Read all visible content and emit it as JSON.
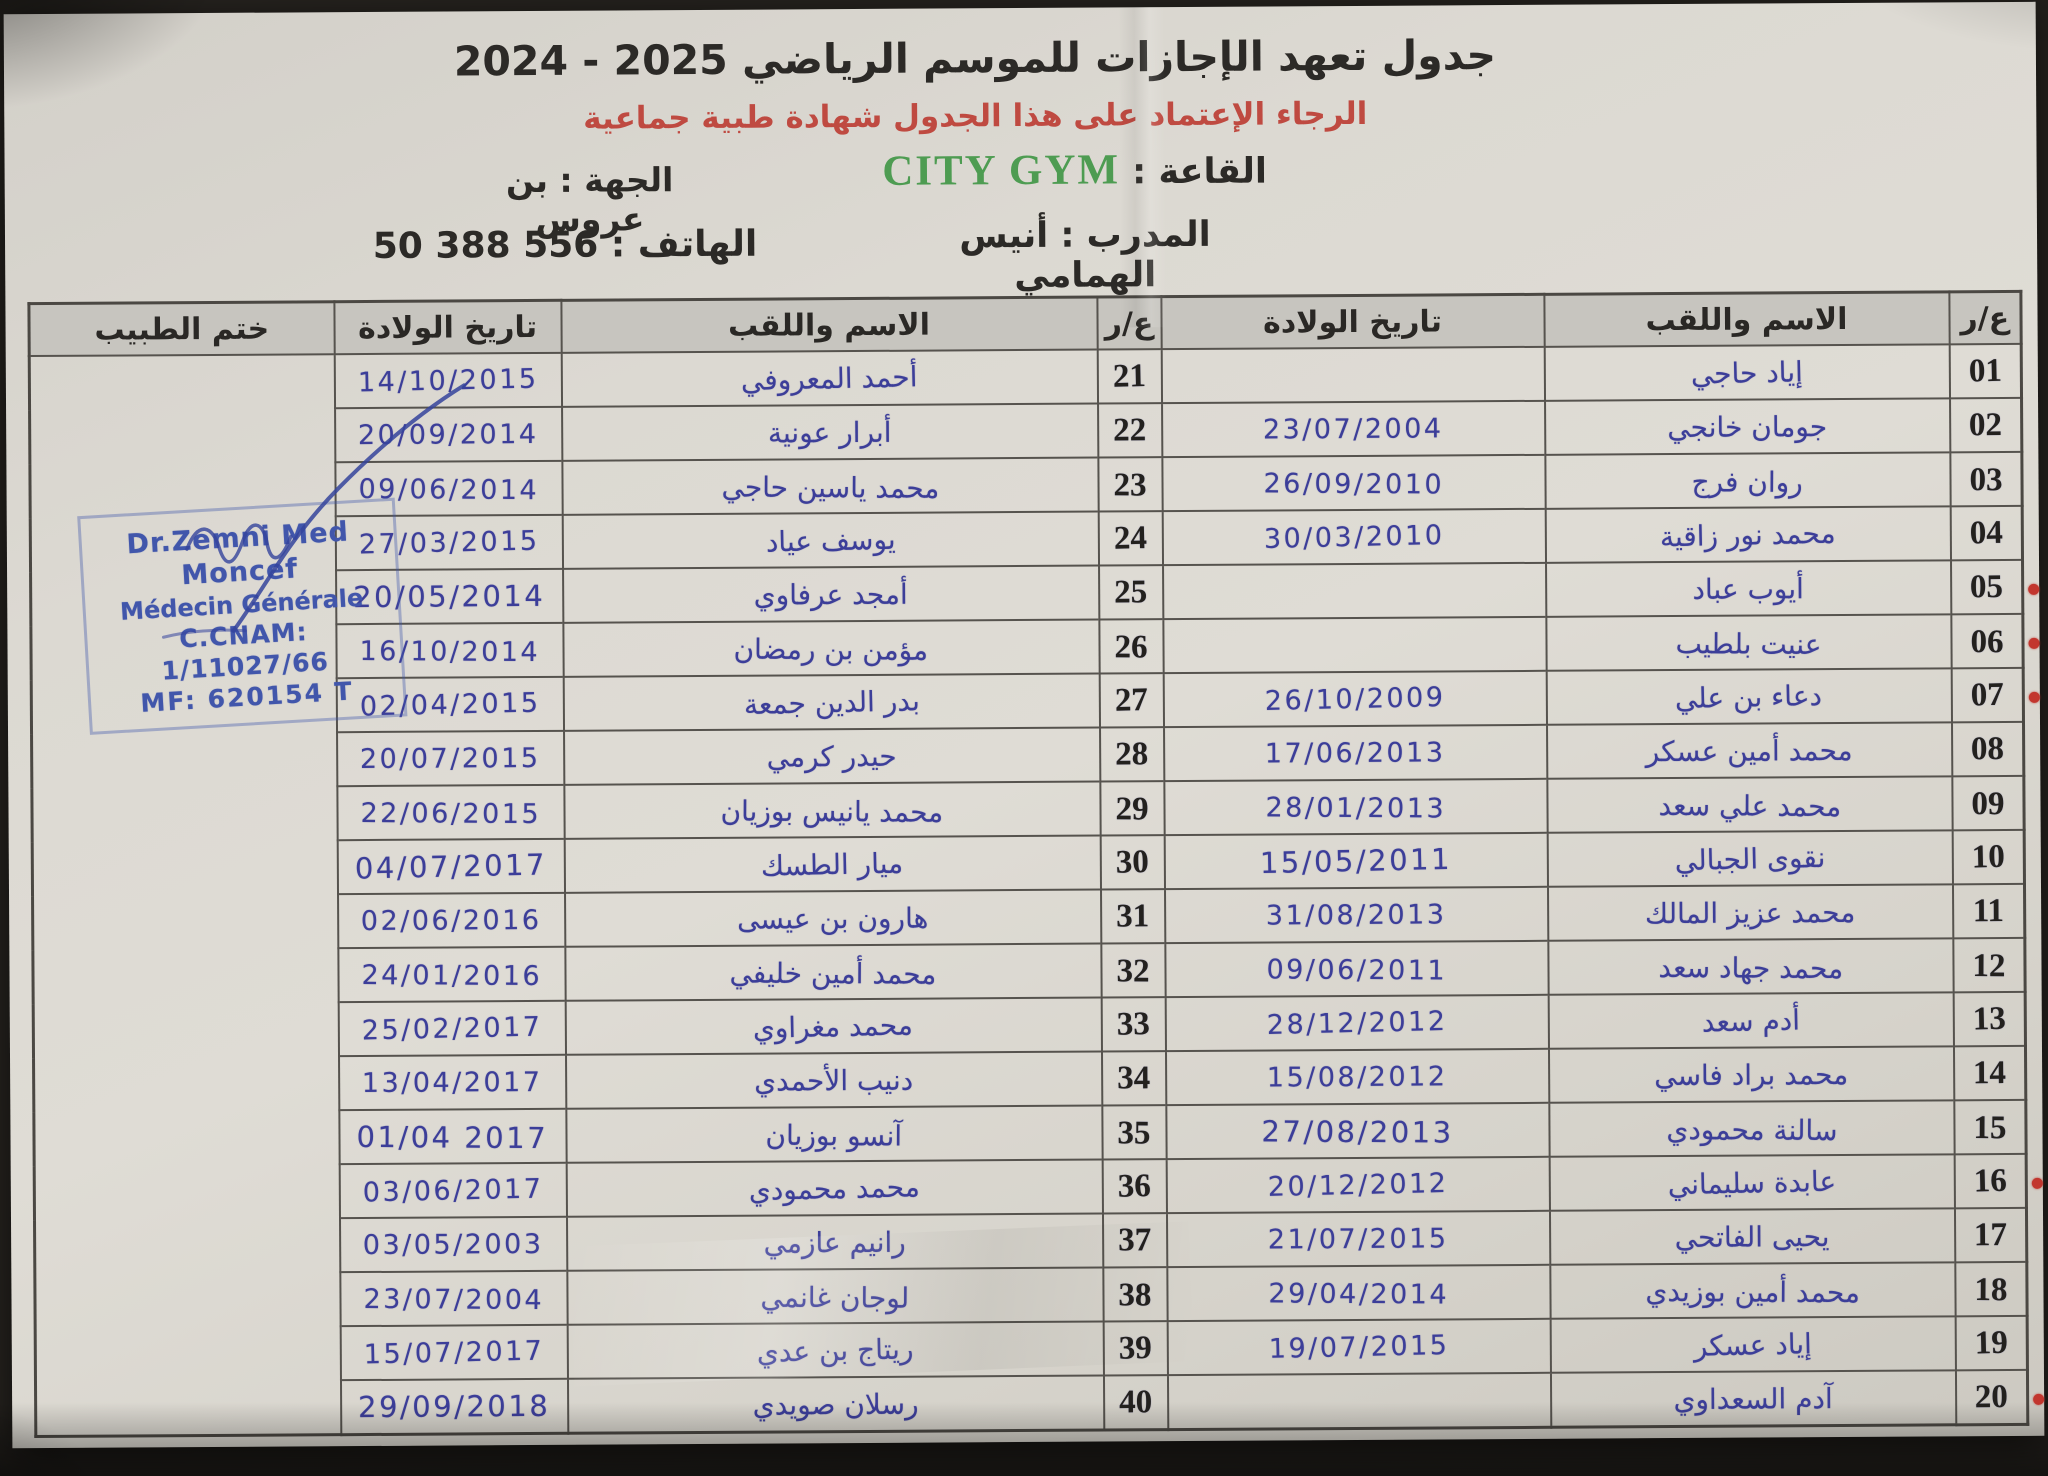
{
  "page": {
    "title_main": "جدول تعهد الإجازات للموسم الرياضي",
    "title_years": "2024 - 2025",
    "subtitle": "الرجاء الإعتماد على هذا الجدول شهادة طبية جماعية",
    "hall_label": "القاعة :",
    "hall_value": "CITY GYM",
    "region_label": "الجهة :",
    "region_value": "بن عروس",
    "coach_label": "المدرب :",
    "coach_value": "أنيس الهمامي",
    "phone_label": "الهاتف :",
    "phone_value": "50 388 556"
  },
  "colors": {
    "subtitle_red": "#bf4a41",
    "gym_green": "#4e9c52",
    "ink_blue": "#3c3e99",
    "stamp_blue": "#4156ab",
    "marker_red": "#c2362e",
    "paper": "#dcd9d2"
  },
  "table": {
    "headers": {
      "num": "ع/ر",
      "name": "الاسم واللقب",
      "dob": "تاريخ الولادة",
      "stamp": "ختم الطبيب"
    },
    "rows_right": [
      {
        "num": "01",
        "name": "إياد حاجي",
        "dob": "",
        "marked": false
      },
      {
        "num": "02",
        "name": "جومان خانجي",
        "dob": "23/07/2004",
        "marked": false
      },
      {
        "num": "03",
        "name": "روان فرج",
        "dob": "26/09/2010",
        "marked": false
      },
      {
        "num": "04",
        "name": "محمد نور زاقية",
        "dob": "30/03/2010",
        "marked": false
      },
      {
        "num": "05",
        "name": "أيوب عباد",
        "dob": "",
        "marked": true
      },
      {
        "num": "06",
        "name": "عنيت بلطيب",
        "dob": "",
        "marked": true
      },
      {
        "num": "07",
        "name": "دعاء بن علي",
        "dob": "26/10/2009",
        "marked": true
      },
      {
        "num": "08",
        "name": "محمد أمين عسكر",
        "dob": "17/06/2013",
        "marked": false
      },
      {
        "num": "09",
        "name": "محمد علي سعد",
        "dob": "28/01/2013",
        "marked": false
      },
      {
        "num": "10",
        "name": "نقوى الجبالي",
        "dob": "15/05/2011",
        "marked": false
      },
      {
        "num": "11",
        "name": "محمد عزيز المالك",
        "dob": "31/08/2013",
        "marked": false
      },
      {
        "num": "12",
        "name": "محمد جهاد سعد",
        "dob": "09/06/2011",
        "marked": false
      },
      {
        "num": "13",
        "name": "أدم سعد",
        "dob": "28/12/2012",
        "marked": false
      },
      {
        "num": "14",
        "name": "محمد براد فاسي",
        "dob": "15/08/2012",
        "marked": false
      },
      {
        "num": "15",
        "name": "سالنة محمودي",
        "dob": "27/08/2013",
        "marked": false
      },
      {
        "num": "16",
        "name": "عابدة سليماني",
        "dob": "20/12/2012",
        "marked": true
      },
      {
        "num": "17",
        "name": "يحيى الفاتحي",
        "dob": "21/07/2015",
        "marked": false
      },
      {
        "num": "18",
        "name": "محمد أمين بوزيدي",
        "dob": "29/04/2014",
        "marked": false
      },
      {
        "num": "19",
        "name": "إياد عسكر",
        "dob": "19/07/2015",
        "marked": false
      },
      {
        "num": "20",
        "name": "آدم السعداوي",
        "dob": "",
        "marked": true
      }
    ],
    "rows_left": [
      {
        "num": "21",
        "name": "أحمد المعروفي",
        "dob": "14/10/2015",
        "marked": false
      },
      {
        "num": "22",
        "name": "أبرار عونية",
        "dob": "20/09/2014",
        "marked": false
      },
      {
        "num": "23",
        "name": "محمد ياسين حاجي",
        "dob": "09/06/2014",
        "marked": false
      },
      {
        "num": "24",
        "name": "يوسف عياد",
        "dob": "27/03/2015",
        "marked": false
      },
      {
        "num": "25",
        "name": "أمجد عرفاوي",
        "dob": "20/05/2014",
        "marked": false
      },
      {
        "num": "26",
        "name": "مؤمن بن رمضان",
        "dob": "16/10/2014",
        "marked": false
      },
      {
        "num": "27",
        "name": "بدر الدين جمعة",
        "dob": "02/04/2015",
        "marked": false
      },
      {
        "num": "28",
        "name": "حيدر كرمي",
        "dob": "20/07/2015",
        "marked": false
      },
      {
        "num": "29",
        "name": "محمد يانيس بوزيان",
        "dob": "22/06/2015",
        "marked": false
      },
      {
        "num": "30",
        "name": "ميار الطسك",
        "dob": "04/07/2017",
        "marked": false
      },
      {
        "num": "31",
        "name": "هارون بن عيسى",
        "dob": "02/06/2016",
        "marked": false
      },
      {
        "num": "32",
        "name": "محمد أمين خليفي",
        "dob": "24/01/2016",
        "marked": false
      },
      {
        "num": "33",
        "name": "محمد مغراوي",
        "dob": "25/02/2017",
        "marked": false
      },
      {
        "num": "34",
        "name": "دنيب الأحمدي",
        "dob": "13/04/2017",
        "marked": false
      },
      {
        "num": "35",
        "name": "آنسو بوزيان",
        "dob": "01/04 2017",
        "marked": false
      },
      {
        "num": "36",
        "name": "محمد محمودي",
        "dob": "03/06/2017",
        "marked": false
      },
      {
        "num": "37",
        "name": "رانيم عازمي",
        "dob": "03/05/2003",
        "marked": false
      },
      {
        "num": "38",
        "name": "لوجان غانمي",
        "dob": "23/07/2004",
        "marked": false
      },
      {
        "num": "39",
        "name": "ريتاج بن عدي",
        "dob": "15/07/2017",
        "marked": false
      },
      {
        "num": "40",
        "name": "رسلان صويدي",
        "dob": "29/09/2018",
        "marked": false
      }
    ]
  },
  "stamp": {
    "line1": "Dr.Zemni Med Moncef",
    "line2": "Médecin Générale",
    "line3": "C.CNAM: 1/11027/66",
    "line4": "MF: 620154 T"
  }
}
